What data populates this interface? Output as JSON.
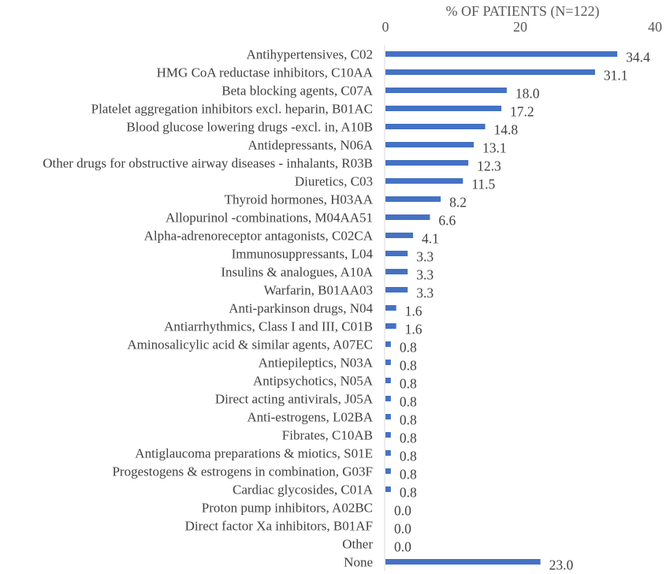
{
  "chart_data": {
    "type": "bar",
    "orientation": "horizontal",
    "title": "",
    "xlabel": "% OF PATIENTS (N=122)",
    "ylabel": "",
    "xlim": [
      0,
      40
    ],
    "x_ticks": [
      "0",
      "20",
      "40"
    ],
    "x_axis_position": "top",
    "grid": false,
    "legend": "none",
    "bar_color": "#4472C4",
    "categories": [
      "Antihypertensives, C02",
      "HMG CoA reductase inhibitors, C10AA",
      "Beta blocking agents, C07A",
      "Platelet aggregation inhibitors excl. heparin, B01AC",
      "Blood glucose lowering drugs -excl. in, A10B",
      "Antidepressants, N06A",
      "Other drugs for obstructive airway diseases - inhalants, R03B",
      "Diuretics, C03",
      "Thyroid hormones, H03AA",
      "Allopurinol -combinations, M04AA51",
      "Alpha-adrenoreceptor antagonists, C02CA",
      "Immunosuppressants, L04",
      "Insulins & analogues, A10A",
      "Warfarin, B01AA03",
      "Anti-parkinson drugs, N04",
      "Antiarrhythmics, Class I and III, C01B",
      "Aminosalicylic acid & similar agents, A07EC",
      "Antiepileptics, N03A",
      "Antipsychotics, N05A",
      "Direct acting antivirals, J05A",
      "Anti-estrogens, L02BA",
      "Fibrates, C10AB",
      "Antiglaucoma preparations & miotics, S01E",
      "Progestogens & estrogens in combination, G03F",
      "Cardiac glycosides, C01A",
      "Proton pump inhibitors, A02BC",
      "Direct factor Xa inhibitors, B01AF",
      "Other",
      "None"
    ],
    "values": [
      34.4,
      31.1,
      18.0,
      17.2,
      14.8,
      13.1,
      12.3,
      11.5,
      8.2,
      6.6,
      4.1,
      3.3,
      3.3,
      3.3,
      1.6,
      1.6,
      0.8,
      0.8,
      0.8,
      0.8,
      0.8,
      0.8,
      0.8,
      0.8,
      0.8,
      0.0,
      0.0,
      0.0,
      23.0
    ],
    "value_labels": [
      "34.4",
      "31.1",
      "18.0",
      "17.2",
      "14.8",
      "13.1",
      "12.3",
      "11.5",
      "8.2",
      "6.6",
      "4.1",
      "3.3",
      "3.3",
      "3.3",
      "1.6",
      "1.6",
      "0.8",
      "0.8",
      "0.8",
      "0.8",
      "0.8",
      "0.8",
      "0.8",
      "0.8",
      "0.8",
      "0.0",
      "0.0",
      "0.0",
      "23.0"
    ]
  }
}
